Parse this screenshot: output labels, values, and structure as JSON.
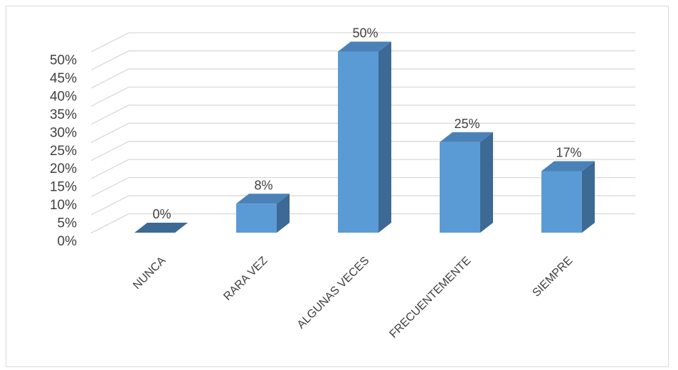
{
  "chart_data": {
    "type": "bar",
    "categories": [
      "NUNCA",
      "RARA VEZ",
      "ALGUNAS VECES",
      "FRECUENTEMENTE",
      "SIEMPRE"
    ],
    "values": [
      0,
      8,
      50,
      25,
      17
    ],
    "data_labels": [
      "0%",
      "8%",
      "50%",
      "25%",
      "17%"
    ],
    "ylim": [
      0,
      50
    ],
    "y_ticks": [
      "0%",
      "5%",
      "10%",
      "15%",
      "20%",
      "25%",
      "30%",
      "35%",
      "40%",
      "45%",
      "50%"
    ],
    "y_tick_values": [
      0,
      5,
      10,
      15,
      20,
      25,
      30,
      35,
      40,
      45,
      50
    ],
    "title": "",
    "xlabel": "",
    "ylabel": "",
    "grid": true,
    "legend": "none",
    "style": "3d-column",
    "colors": {
      "bar_front": "#5b9bd5",
      "bar_side": "#3c6a94",
      "bar_top": "#4a82b8",
      "gridline": "#d9d9d9",
      "text": "#404040"
    }
  }
}
